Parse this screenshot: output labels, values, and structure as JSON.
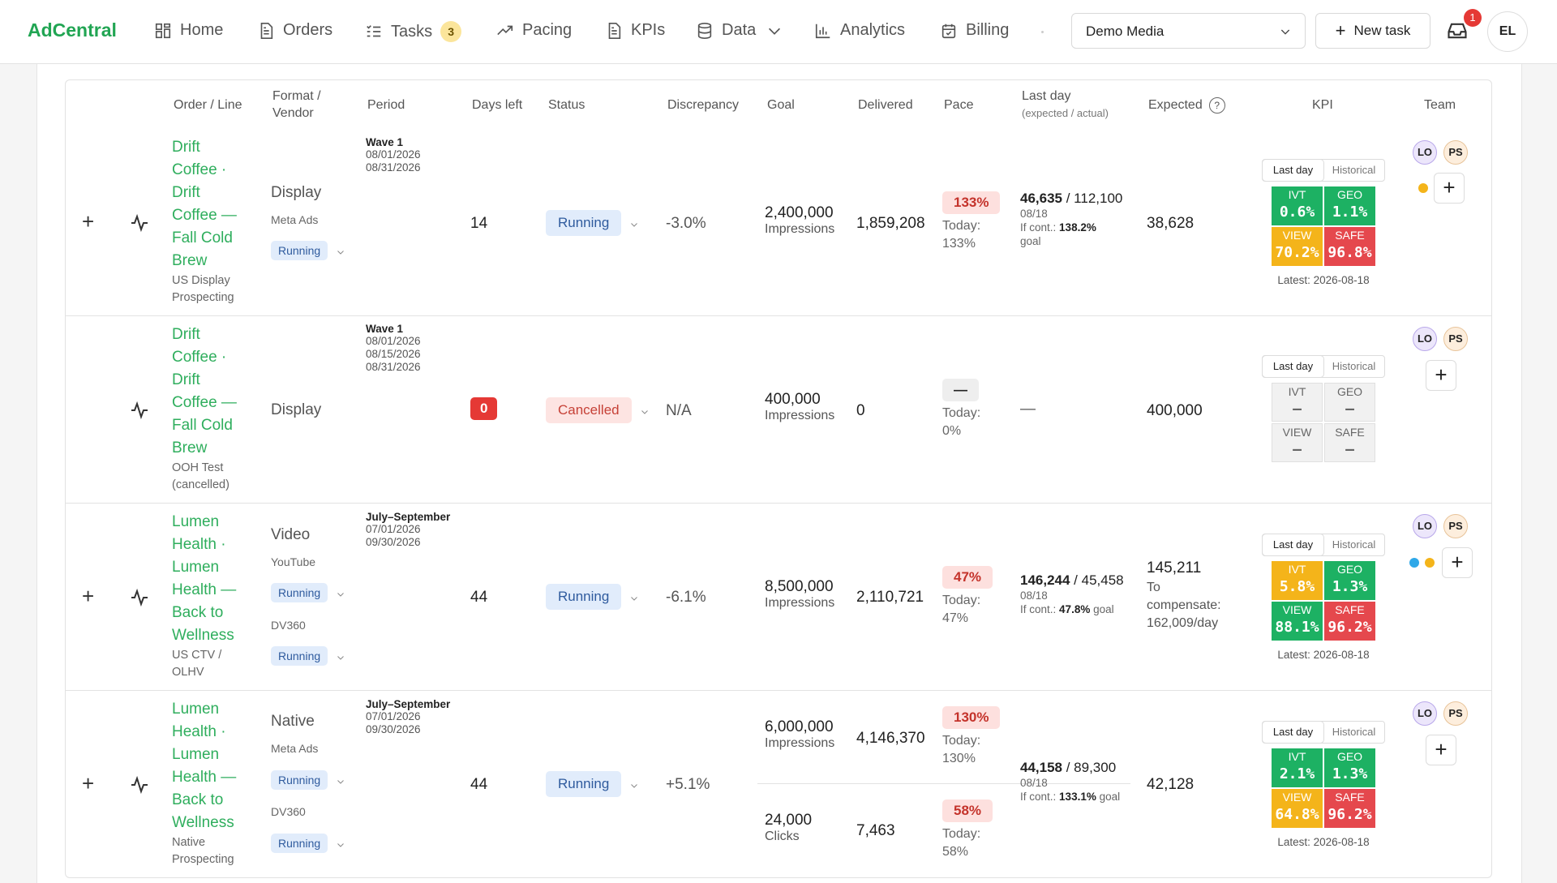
{
  "brand": "AdCentral",
  "nav": [
    {
      "label": "Home",
      "icon": "home-icon"
    },
    {
      "label": "Orders",
      "icon": "document-icon"
    },
    {
      "label": "Tasks",
      "icon": "checklist-icon",
      "badge": "3"
    },
    {
      "label": "Pacing",
      "icon": "trend-icon"
    },
    {
      "label": "KPIs",
      "icon": "document-icon"
    },
    {
      "label": "Data",
      "icon": "database-icon"
    },
    {
      "label": "Analytics",
      "icon": "bar-chart-icon"
    },
    {
      "label": "Billing",
      "icon": "calendar-icon"
    }
  ],
  "org_select": "Demo Media",
  "new_task_label": "New task",
  "inbox_badge": "1",
  "user_initials": "EL",
  "columns": {
    "order": "Order / Line",
    "format": "Format /",
    "format2": "Vendor",
    "period": "Period",
    "days_left": "Days left",
    "status": "Status",
    "discrepancy": "Discrepancy",
    "goal": "Goal",
    "delivered": "Delivered",
    "pace": "Pace",
    "last_day": "Last day",
    "last_day_sub": "(expected / actual)",
    "expected": "Expected",
    "kpi": "KPI",
    "team": "Team"
  },
  "kpi_tabs": {
    "last_day": "Last day",
    "historical": "Historical"
  },
  "kpi_labels": {
    "ivt": "IVT",
    "geo": "GEO",
    "view": "VIEW",
    "safe": "SAFE"
  },
  "team": {
    "lo": "LO",
    "ps": "PS"
  },
  "rows": [
    {
      "name_lines": [
        "Drift",
        "Coffee ·",
        "Drift",
        "Coffee —",
        "Fall Cold",
        "Brew"
      ],
      "sub_lines": [
        "US Display",
        "Prospecting"
      ],
      "format": "Display",
      "vendor1": "Meta Ads",
      "vendor1_status": "Running",
      "period_title": "Wave 1",
      "period_dates": [
        "08/01/2026",
        "08/31/2026"
      ],
      "days_left": "14",
      "status": "Running",
      "discrepancy": "-3.0%",
      "goal": "2,400,000",
      "goal_unit": "Impressions",
      "delivered": "1,859,208",
      "pace": "133%",
      "pace_today": "Today:",
      "pace_today_val": "133%",
      "ld_expected": "46,635",
      "ld_actual": "112,100",
      "ld_date": "08/18",
      "ld_cont_label": "If cont.:",
      "ld_cont": "138.2%",
      "ld_goal": "goal",
      "expected": "38,628",
      "kpi": {
        "ivt": "0.6%",
        "geo": "1.1%",
        "view": "70.2%",
        "safe": "96.8%"
      },
      "kpi_latest": "Latest: 2026-08-18"
    },
    {
      "name_lines": [
        "Drift",
        "Coffee ·",
        "Drift",
        "Coffee —",
        "Fall Cold",
        "Brew"
      ],
      "sub_lines": [
        "OOH Test",
        "(cancelled)"
      ],
      "format": "Display",
      "period_title": "Wave 1",
      "period_dates": [
        "08/01/2026",
        "08/15/2026",
        "08/31/2026"
      ],
      "days_left": "0",
      "status": "Cancelled",
      "discrepancy": "N/A",
      "goal": "400,000",
      "goal_unit": "Impressions",
      "delivered": "0",
      "pace": "—",
      "pace_today": "Today:",
      "pace_today_val": "0%",
      "ld_dash": "—",
      "expected": "400,000",
      "kpi": {
        "ivt": "—",
        "geo": "—",
        "view": "—",
        "safe": "—"
      }
    },
    {
      "name_lines": [
        "Lumen",
        "Health ·",
        "Lumen",
        "Health —",
        "Back to",
        "Wellness"
      ],
      "sub_lines": [
        "US CTV /",
        "OLHV"
      ],
      "format": "Video",
      "vendor1": "YouTube",
      "vendor1_status": "Running",
      "vendor2": "DV360",
      "vendor2_status": "Running",
      "period_title": "July–September",
      "period_dates": [
        "07/01/2026",
        "09/30/2026"
      ],
      "days_left": "44",
      "status": "Running",
      "discrepancy": "-6.1%",
      "goal": "8,500,000",
      "goal_unit": "Impressions",
      "delivered": "2,110,721",
      "pace": "47%",
      "pace_today": "Today:",
      "pace_today_val": "47%",
      "ld_expected": "146,244",
      "ld_actual": "45,458",
      "ld_date": "08/18",
      "ld_cont_label": "If cont.:",
      "ld_cont": "47.8%",
      "ld_goal": "goal",
      "expected": "145,211",
      "expected_note": [
        "To",
        "compensate:",
        "162,009/day"
      ],
      "kpi": {
        "ivt": "5.8%",
        "geo": "1.3%",
        "view": "88.1%",
        "safe": "96.2%"
      },
      "kpi_latest": "Latest: 2026-08-18"
    },
    {
      "name_lines": [
        "Lumen",
        "Health ·",
        "Lumen",
        "Health —",
        "Back to",
        "Wellness"
      ],
      "sub_lines": [
        "Native",
        "Prospecting"
      ],
      "format": "Native",
      "vendor1": "Meta Ads",
      "vendor1_status": "Running",
      "vendor2": "DV360",
      "vendor2_status": "Running",
      "period_title": "July–September",
      "period_dates": [
        "07/01/2026",
        "09/30/2026"
      ],
      "days_left": "44",
      "status": "Running",
      "discrepancy": "+5.1%",
      "goal": "6,000,000",
      "goal_unit": "Impressions",
      "delivered": "4,146,370",
      "pace": "130%",
      "pace_today": "Today:",
      "pace_today_val": "130%",
      "goal2": "24,000",
      "goal2_unit": "Clicks",
      "delivered2": "7,463",
      "pace2": "58%",
      "pace2_today_val": "58%",
      "ld_expected": "44,158",
      "ld_actual": "89,300",
      "ld_date": "08/18",
      "ld_cont_label": "If cont.:",
      "ld_cont": "133.1%",
      "ld_goal": "goal",
      "expected": "42,128",
      "kpi": {
        "ivt": "2.1%",
        "geo": "1.3%",
        "view": "64.8%",
        "safe": "96.2%"
      },
      "kpi_latest": "Latest: 2026-08-18"
    }
  ]
}
